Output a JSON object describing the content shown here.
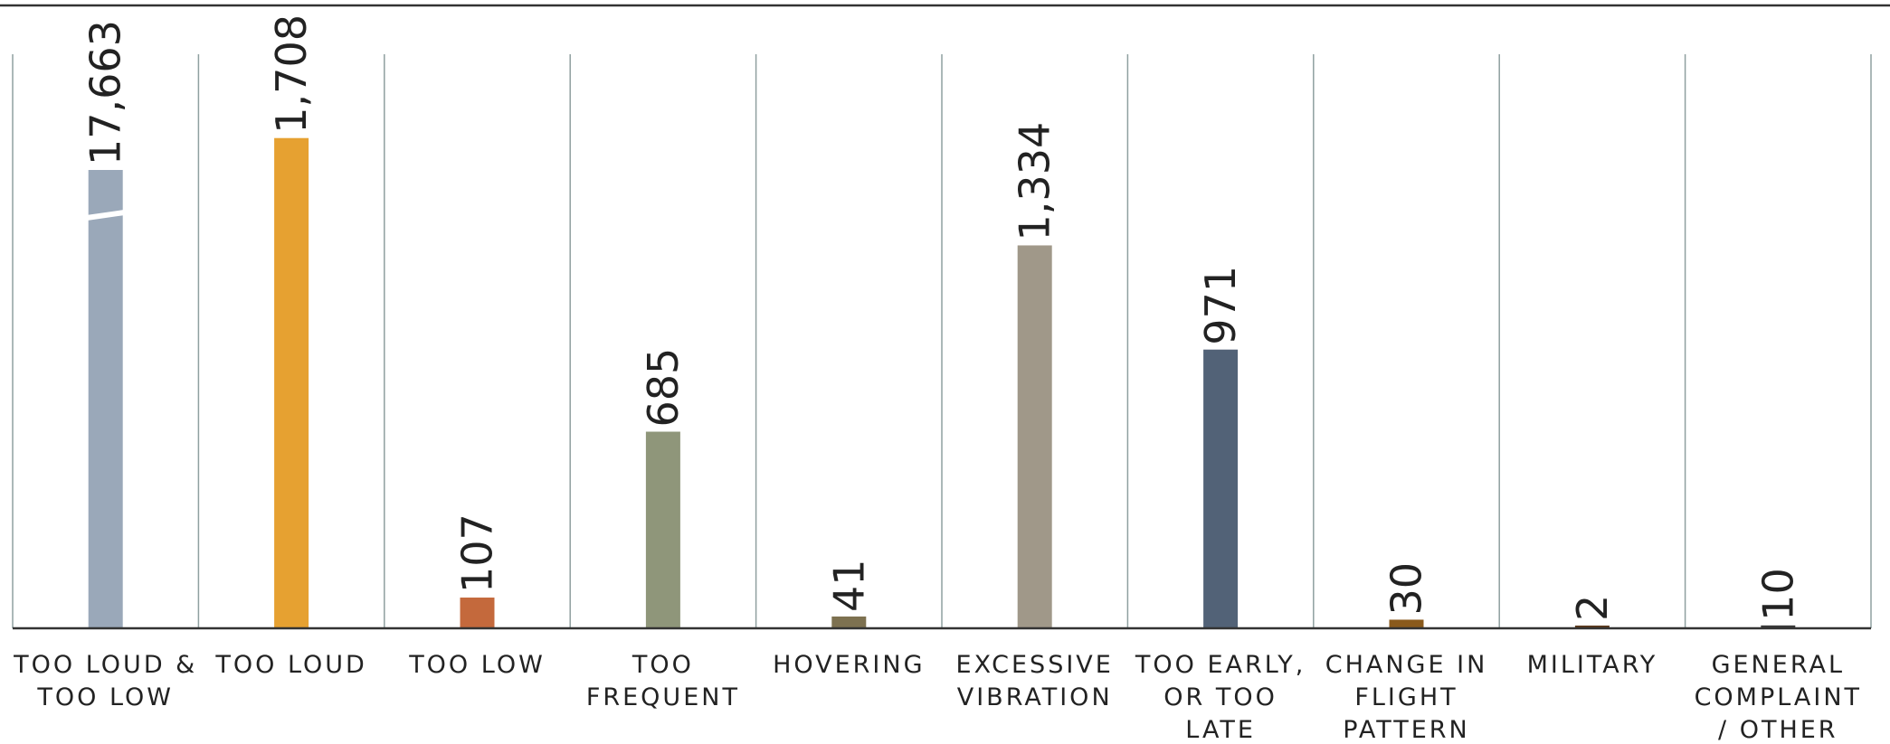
{
  "chart_data": {
    "type": "bar",
    "title": "",
    "xlabel": "",
    "ylabel": "",
    "categories": [
      [
        "TOO LOUD &",
        "TOO LOW"
      ],
      [
        "TOO LOUD"
      ],
      [
        "TOO LOW"
      ],
      [
        "TOO",
        "FREQUENT"
      ],
      [
        "HOVERING"
      ],
      [
        "EXCESSIVE",
        "VIBRATION"
      ],
      [
        "TOO EARLY,",
        "OR TOO",
        "LATE"
      ],
      [
        "CHANGE IN",
        "FLIGHT",
        "PATTERN"
      ],
      [
        "MILITARY"
      ],
      [
        "GENERAL",
        "COMPLAINT",
        "/ OTHER"
      ]
    ],
    "values": [
      17663,
      1708,
      107,
      685,
      41,
      1334,
      971,
      30,
      2,
      10
    ],
    "value_labels": [
      "17,663",
      "1,708",
      "107",
      "685",
      "41",
      "1,334",
      "971",
      "30",
      "2",
      "10"
    ],
    "axis_break": {
      "category_index": 0,
      "note": "bar truncated with break mark"
    },
    "ylim": [
      0,
      2000
    ],
    "grid": "vertical separators between categories",
    "colors": [
      "#9aa8b9",
      "#e6a131",
      "#c4693c",
      "#8f967a",
      "#7d7150",
      "#a09889",
      "#526277",
      "#8a5a1c",
      "#5c3a1c",
      "#3a3a3a"
    ]
  }
}
